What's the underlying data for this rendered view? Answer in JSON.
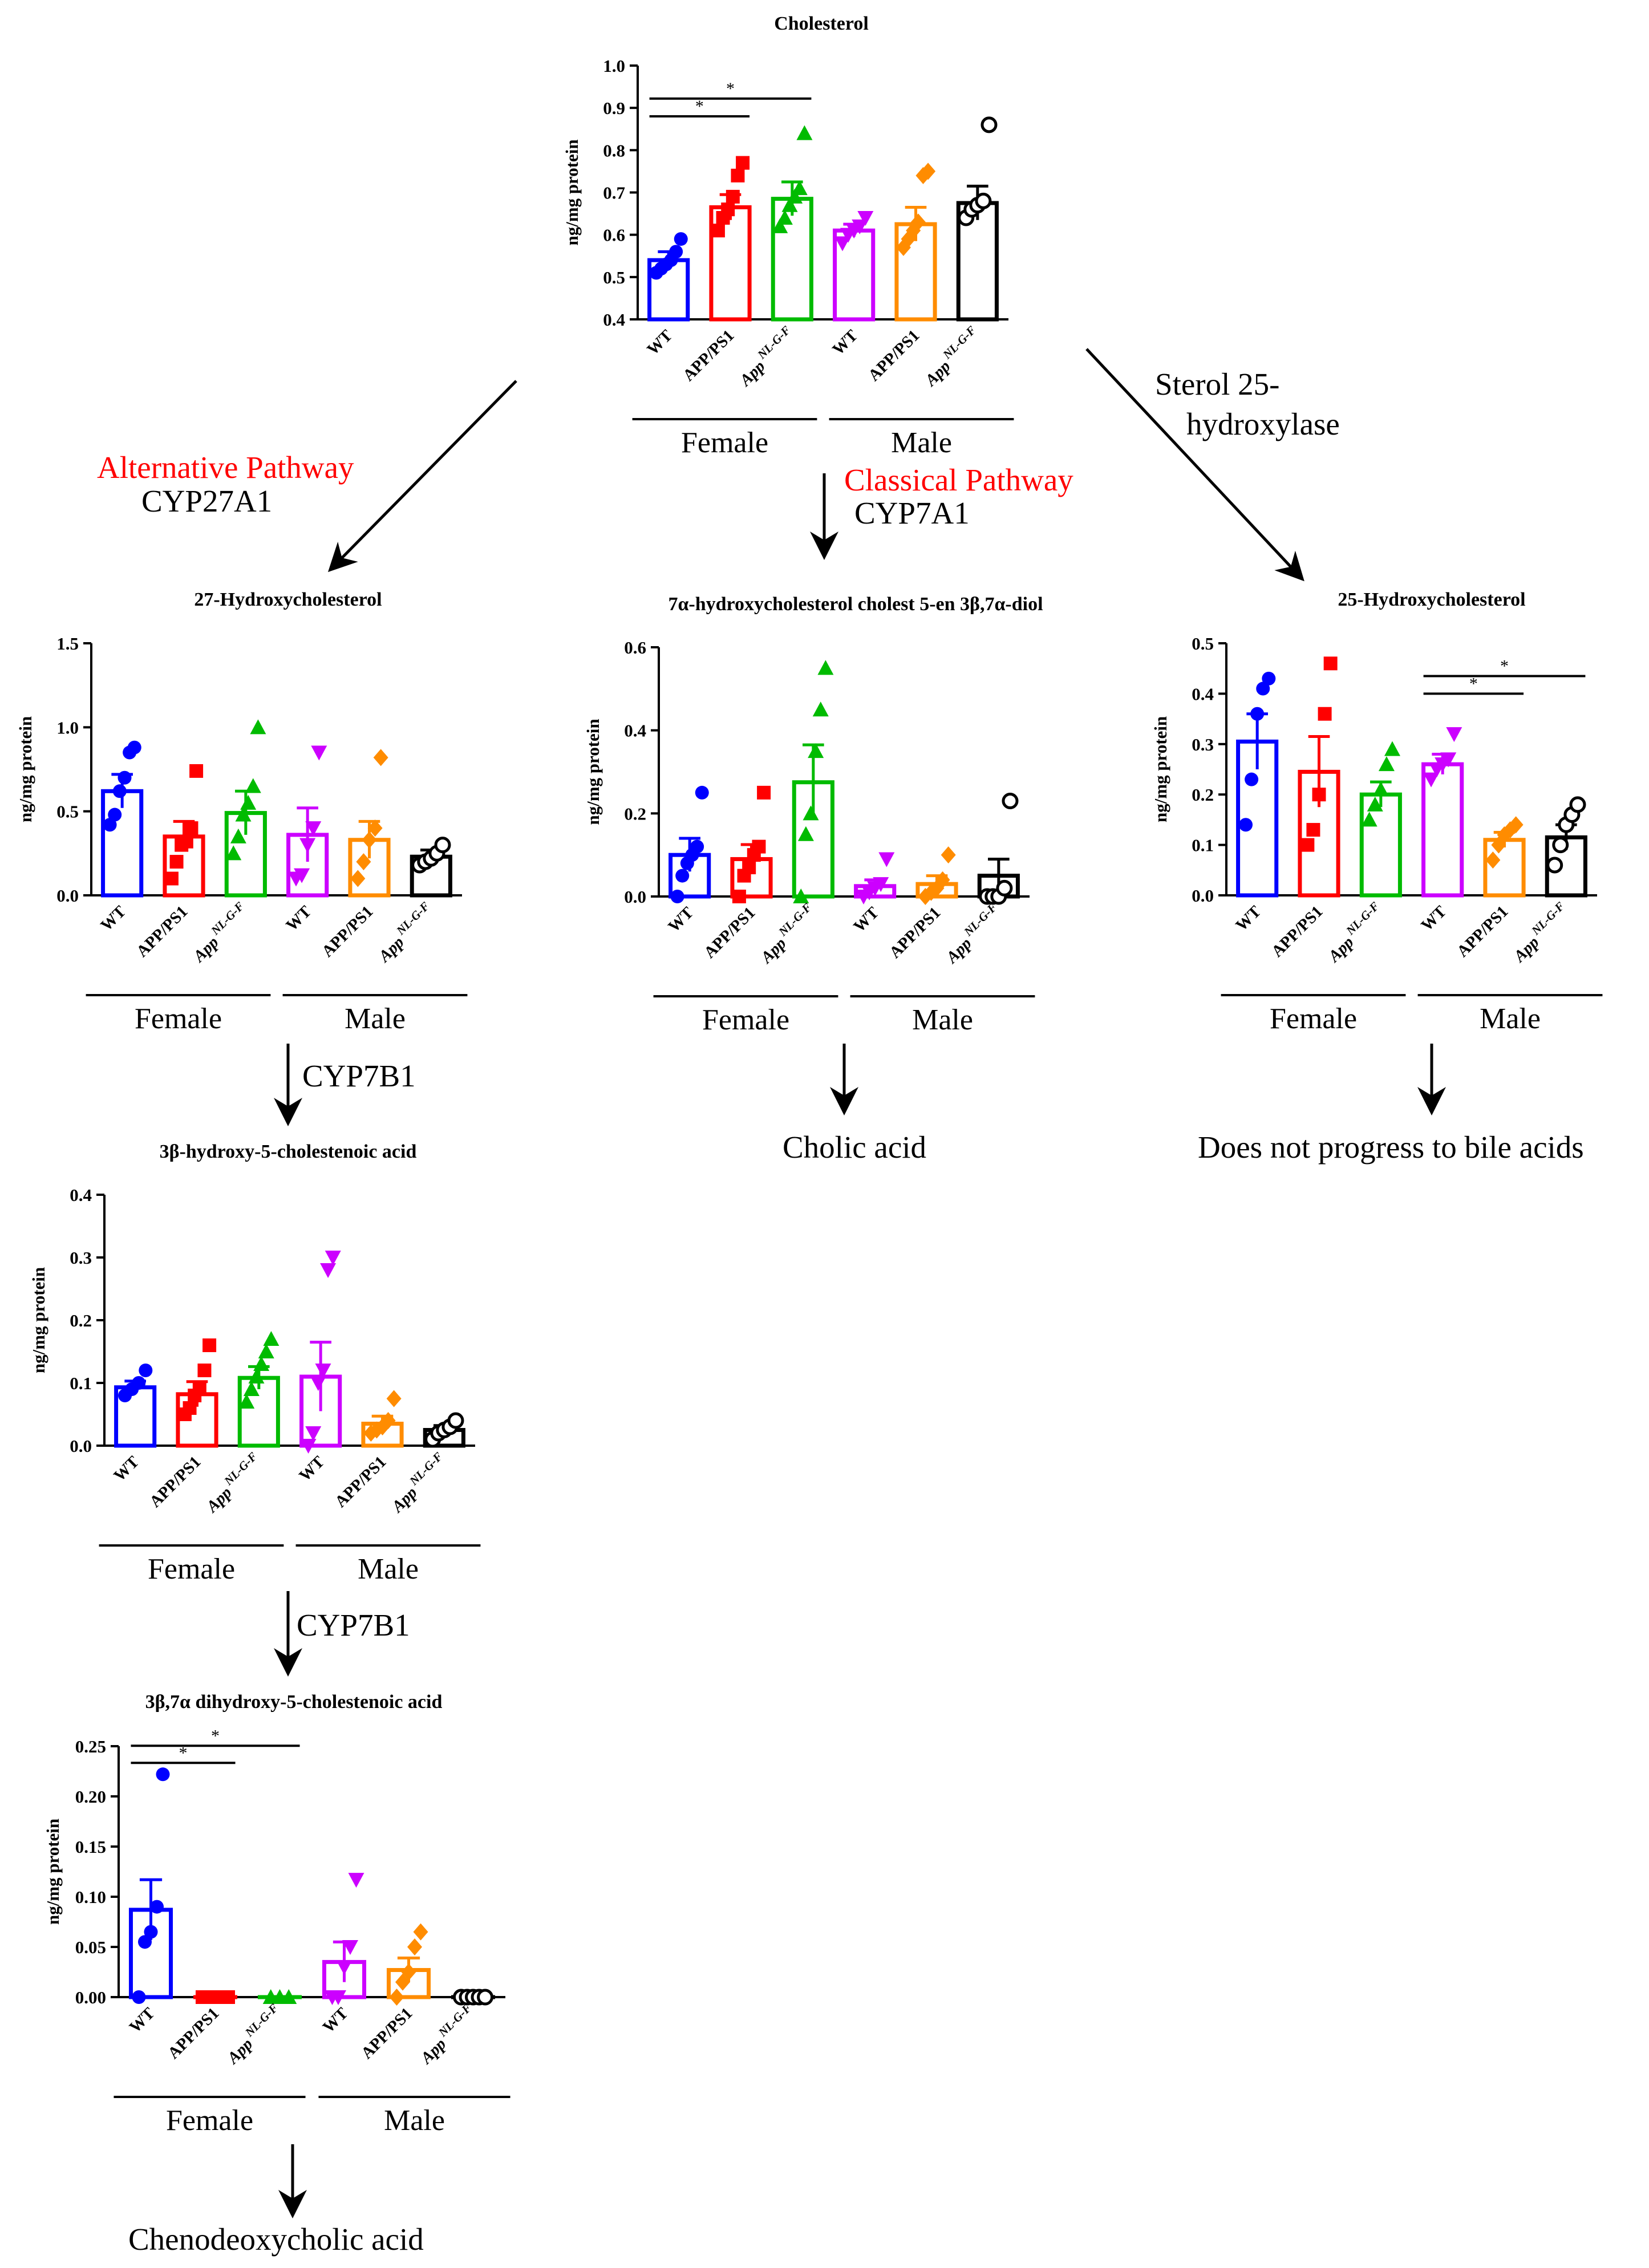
{
  "colors": {
    "wt": "#0000ff",
    "app_ps1": "#ff0000",
    "app_nlgf": "#00bb00",
    "wt_male": "#cc00ff",
    "app_ps1_male": "#ff8c00",
    "app_nlgf_male": "#000000",
    "pathway_red": "#ff0000"
  },
  "groups": {
    "labels": [
      "WT",
      "APP/PS1",
      "App NL-G-F",
      "WT",
      "APP/PS1",
      "App NL-G-F"
    ],
    "female_label": "Female",
    "male_label": "Male"
  },
  "pathway": {
    "alternative_title": "Alternative Pathway",
    "alternative_enzyme": "CYP27A1",
    "classical_title": "Classical Pathway",
    "classical_enzyme": "CYP7A1",
    "sterol_line1": "Sterol 25-",
    "sterol_line2": "hydroxylase",
    "cyp7b1_a": "CYP7B1",
    "cyp7b1_b": "CYP7B1",
    "cholic": "Cholic acid",
    "no_progress": "Does not progress to bile acids",
    "cdca": "Chenodeoxycholic acid"
  },
  "chart_data": [
    {
      "id": "cholesterol",
      "type": "bar",
      "title": "Cholesterol",
      "ylabel": "ng/mg protein",
      "ylim": [
        0.4,
        1.0
      ],
      "ticks": [
        "0.4",
        "0.5",
        "0.6",
        "0.7",
        "0.8",
        "0.9",
        "1.0"
      ],
      "categories": [
        "WT",
        "APP/PS1",
        "App NL-G-F",
        "WT",
        "APP/PS1",
        "App NL-G-F"
      ],
      "values": [
        0.54,
        0.665,
        0.685,
        0.61,
        0.625,
        0.675
      ],
      "sem": [
        0.02,
        0.03,
        0.04,
        0.015,
        0.04,
        0.04
      ],
      "points": [
        [
          0.51,
          0.52,
          0.53,
          0.54,
          0.56,
          0.59
        ],
        [
          0.61,
          0.64,
          0.66,
          0.69,
          0.74,
          0.77
        ],
        [
          0.62,
          0.64,
          0.67,
          0.69,
          0.71,
          0.84
        ],
        [
          0.58,
          0.6,
          0.61,
          0.62,
          0.64
        ],
        [
          0.57,
          0.59,
          0.61,
          0.63,
          0.74,
          0.75
        ],
        [
          0.64,
          0.66,
          0.67,
          0.68,
          0.86
        ]
      ],
      "significance": [
        {
          "from": 0,
          "to": 1,
          "label": "*"
        },
        {
          "from": 0,
          "to": 2,
          "label": "*"
        }
      ]
    },
    {
      "id": "hc27",
      "type": "bar",
      "title": "27-Hydroxycholesterol",
      "ylabel": "ng/mg protein",
      "ylim": [
        0,
        1.5
      ],
      "ticks": [
        "0.0",
        "0.5",
        "1.0",
        "1.5"
      ],
      "categories": [
        "WT",
        "APP/PS1",
        "App NL-G-F",
        "WT",
        "APP/PS1",
        "App NL-G-F"
      ],
      "values": [
        0.62,
        0.35,
        0.49,
        0.36,
        0.33,
        0.23
      ],
      "sem": [
        0.1,
        0.09,
        0.13,
        0.16,
        0.11,
        0.04
      ],
      "points": [
        [
          0.42,
          0.48,
          0.62,
          0.7,
          0.85,
          0.88
        ],
        [
          0.1,
          0.2,
          0.3,
          0.32,
          0.4,
          0.74
        ],
        [
          0.25,
          0.35,
          0.48,
          0.55,
          0.65,
          1.0
        ],
        [
          0.1,
          0.12,
          0.3,
          0.4,
          0.85
        ],
        [
          0.1,
          0.2,
          0.33,
          0.4,
          0.82
        ],
        [
          0.18,
          0.2,
          0.22,
          0.25,
          0.3
        ]
      ],
      "significance": []
    },
    {
      "id": "diol",
      "type": "bar",
      "title": "7α-hydroxycholesterol cholest 5-en 3β,7α-diol",
      "ylabel": "ng/mg protein",
      "ylim": [
        0,
        0.6
      ],
      "ticks": [
        "0.0",
        "0.2",
        "0.4",
        "0.6"
      ],
      "categories": [
        "WT",
        "APP/PS1",
        "App NL-G-F",
        "WT",
        "APP/PS1",
        "App NL-G-F"
      ],
      "values": [
        0.1,
        0.09,
        0.275,
        0.025,
        0.03,
        0.05
      ],
      "sem": [
        0.04,
        0.035,
        0.09,
        0.015,
        0.02,
        0.04
      ],
      "points": [
        [
          0.0,
          0.05,
          0.08,
          0.1,
          0.12,
          0.25
        ],
        [
          0.0,
          0.05,
          0.07,
          0.1,
          0.12,
          0.25
        ],
        [
          0.0,
          0.15,
          0.2,
          0.35,
          0.45,
          0.55
        ],
        [
          0.0,
          0.01,
          0.02,
          0.03,
          0.09
        ],
        [
          0.0,
          0.01,
          0.02,
          0.04,
          0.1
        ],
        [
          0.0,
          0.0,
          0.0,
          0.02,
          0.23
        ]
      ],
      "significance": []
    },
    {
      "id": "hc25",
      "type": "bar",
      "title": "25-Hydroxycholesterol",
      "ylabel": "ng/mg protein",
      "ylim": [
        0,
        0.5
      ],
      "ticks": [
        "0.0",
        "0.1",
        "0.2",
        "0.3",
        "0.4",
        "0.5"
      ],
      "categories": [
        "WT",
        "APP/PS1",
        "App NL-G-F",
        "WT",
        "APP/PS1",
        "App NL-G-F"
      ],
      "values": [
        0.305,
        0.245,
        0.2,
        0.26,
        0.11,
        0.115
      ],
      "sem": [
        0.055,
        0.07,
        0.025,
        0.02,
        0.015,
        0.025
      ],
      "points": [
        [
          0.14,
          0.23,
          0.36,
          0.41,
          0.43
        ],
        [
          0.1,
          0.13,
          0.2,
          0.36,
          0.46
        ],
        [
          0.15,
          0.18,
          0.21,
          0.26,
          0.29
        ],
        [
          0.23,
          0.25,
          0.26,
          0.27,
          0.32
        ],
        [
          0.07,
          0.1,
          0.12,
          0.13,
          0.14
        ],
        [
          0.06,
          0.1,
          0.14,
          0.16,
          0.18
        ]
      ],
      "significance": [
        {
          "from": 3,
          "to": 4,
          "label": "*"
        },
        {
          "from": 3,
          "to": 5,
          "label": "*"
        }
      ]
    },
    {
      "id": "hcestenoic",
      "type": "bar",
      "title": "3β-hydroxy-5-cholestenoic acid",
      "ylabel": "ng/mg protein",
      "ylim": [
        0,
        0.4
      ],
      "ticks": [
        "0.0",
        "0.1",
        "0.2",
        "0.3",
        "0.4"
      ],
      "categories": [
        "WT",
        "APP/PS1",
        "App NL-G-F",
        "WT",
        "APP/PS1",
        "App NL-G-F"
      ],
      "values": [
        0.093,
        0.082,
        0.108,
        0.11,
        0.035,
        0.025
      ],
      "sem": [
        0.01,
        0.02,
        0.018,
        0.055,
        0.012,
        0.007
      ],
      "points": [
        [
          0.08,
          0.09,
          0.1,
          0.12
        ],
        [
          0.05,
          0.06,
          0.08,
          0.09,
          0.12,
          0.16
        ],
        [
          0.07,
          0.09,
          0.11,
          0.13,
          0.15,
          0.17
        ],
        [
          0.0,
          0.02,
          0.1,
          0.12,
          0.28,
          0.3
        ],
        [
          0.02,
          0.025,
          0.03,
          0.04,
          0.075
        ],
        [
          0.01,
          0.02,
          0.025,
          0.03,
          0.04
        ]
      ],
      "significance": []
    },
    {
      "id": "dihydroxy",
      "type": "bar",
      "title": "3β,7α dihydroxy-5-cholestenoic acid",
      "ylabel": "ng/mg protein",
      "ylim": [
        0,
        0.25
      ],
      "ticks": [
        "0.00",
        "0.05",
        "0.10",
        "0.15",
        "0.20",
        "0.25"
      ],
      "categories": [
        "WT",
        "APP/PS1",
        "App NL-G-F",
        "WT",
        "APP/PS1",
        "App NL-G-F"
      ],
      "values": [
        0.087,
        0.0,
        0.0,
        0.035,
        0.027,
        0.0
      ],
      "sem": [
        0.03,
        0.0,
        0.0,
        0.02,
        0.012,
        0.0
      ],
      "points": [
        [
          0.0,
          0.055,
          0.065,
          0.09,
          0.222
        ],
        [
          0.0,
          0.0,
          0.0,
          0.0,
          0.0,
          0.0
        ],
        [
          0.0,
          0.0,
          0.0
        ],
        [
          0.0,
          0.0,
          0.03,
          0.05,
          0.117
        ],
        [
          0.0,
          0.015,
          0.025,
          0.05,
          0.065
        ],
        [
          0.0,
          0.0,
          0.0,
          0.0,
          0.0
        ]
      ],
      "significance": [
        {
          "from": 0,
          "to": 1,
          "label": "*"
        },
        {
          "from": 0,
          "to": 2,
          "label": "*"
        }
      ]
    }
  ]
}
